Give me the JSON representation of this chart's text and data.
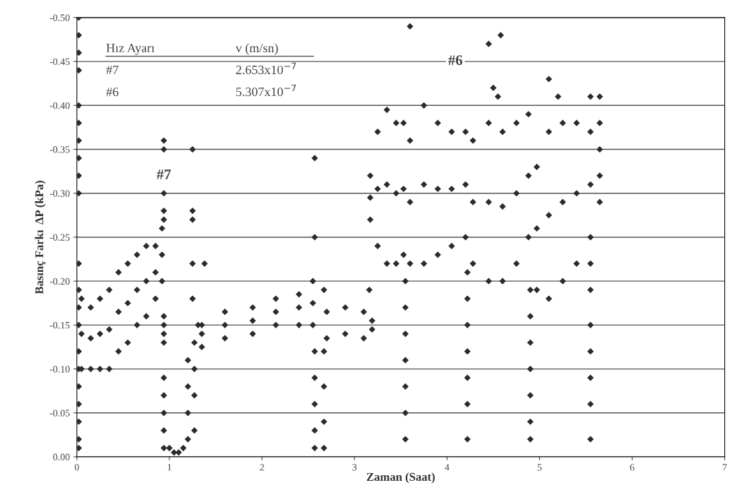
{
  "chart_data": {
    "type": "scatter",
    "xlabel": "Zaman (Saat)",
    "ylabel": "Basınç Farkı  ΔP (kPa)",
    "x": [
      0.02,
      0.02,
      0.02,
      0.02,
      0.02,
      0.02,
      0.02,
      0.02,
      0.02,
      0.02,
      0.02,
      0.02,
      0.02,
      0.02,
      0.02,
      0.02,
      0.02,
      0.02,
      0.02,
      0.02,
      0.02,
      0.05,
      0.05,
      0.05,
      0.15,
      0.15,
      0.15,
      0.25,
      0.25,
      0.25,
      0.35,
      0.35,
      0.35,
      0.45,
      0.45,
      0.45,
      0.55,
      0.55,
      0.55,
      0.65,
      0.65,
      0.65,
      0.75,
      0.75,
      0.75,
      0.85,
      0.85,
      0.85,
      0.92,
      0.92,
      0.92,
      0.94,
      0.94,
      0.94,
      0.94,
      0.94,
      0.94,
      0.94,
      0.94,
      0.94,
      0.94,
      0.94,
      0.94,
      0.94,
      0.94,
      1.0,
      1.05,
      1.1,
      1.15,
      1.2,
      1.2,
      1.2,
      1.2,
      1.27,
      1.27,
      1.27,
      1.27,
      1.31,
      1.25,
      1.25,
      1.25,
      1.25,
      1.25,
      1.38,
      1.35,
      1.35,
      1.35,
      1.6,
      1.6,
      1.6,
      1.9,
      1.9,
      1.9,
      2.15,
      2.15,
      2.15,
      2.4,
      2.4,
      2.4,
      2.55,
      2.55,
      2.55,
      2.57,
      2.57,
      2.57,
      2.57,
      2.57,
      2.57,
      2.57,
      2.67,
      2.67,
      2.67,
      2.67,
      2.67,
      2.7,
      2.7,
      2.9,
      2.9,
      3.1,
      3.1,
      3.19,
      3.19,
      3.16,
      3.17,
      3.17,
      3.17,
      3.25,
      3.25,
      3.25,
      3.35,
      3.35,
      3.35,
      3.45,
      3.45,
      3.45,
      3.53,
      3.53,
      3.53,
      3.55,
      3.55,
      3.55,
      3.55,
      3.55,
      3.55,
      3.55,
      3.6,
      3.6,
      3.6,
      3.75,
      3.75,
      3.75,
      3.9,
      3.9,
      3.9,
      4.05,
      4.05,
      4.05,
      4.2,
      4.2,
      4.2,
      4.22,
      4.22,
      4.22,
      4.22,
      4.22,
      4.22,
      4.22,
      4.28,
      4.28,
      4.28,
      4.45,
      4.45,
      4.45,
      4.6,
      4.6,
      4.6,
      4.75,
      4.75,
      4.75,
      4.88,
      4.88,
      4.88,
      4.45,
      4.58,
      4.5,
      4.55,
      3.6,
      4.9,
      4.9,
      4.9,
      4.9,
      4.9,
      4.9,
      4.9,
      4.97,
      4.97,
      4.97,
      5.1,
      5.1,
      5.1,
      5.25,
      5.25,
      5.25,
      5.4,
      5.4,
      5.4,
      5.55,
      5.55,
      5.55,
      5.1,
      5.2,
      5.55,
      5.55,
      5.55,
      5.55,
      5.55,
      5.55,
      5.55,
      5.55,
      5.65,
      5.65,
      5.65,
      5.65,
      5.65
    ],
    "values": [
      -0.5,
      -0.48,
      -0.46,
      -0.44,
      -0.4,
      -0.38,
      -0.36,
      -0.34,
      -0.32,
      -0.3,
      -0.22,
      -0.19,
      -0.17,
      -0.15,
      -0.12,
      -0.1,
      -0.08,
      -0.06,
      -0.04,
      -0.02,
      -0.01,
      -0.18,
      -0.14,
      -0.1,
      -0.17,
      -0.135,
      -0.1,
      -0.18,
      -0.14,
      -0.1,
      -0.19,
      -0.145,
      -0.1,
      -0.21,
      -0.165,
      -0.12,
      -0.22,
      -0.175,
      -0.13,
      -0.23,
      -0.19,
      -0.15,
      -0.24,
      -0.2,
      -0.16,
      -0.24,
      -0.21,
      -0.18,
      -0.26,
      -0.23,
      -0.2,
      -0.36,
      -0.35,
      -0.3,
      -0.28,
      -0.27,
      -0.16,
      -0.15,
      -0.14,
      -0.13,
      -0.09,
      -0.07,
      -0.05,
      -0.03,
      -0.01,
      -0.01,
      -0.005,
      -0.005,
      -0.01,
      -0.02,
      -0.05,
      -0.08,
      -0.11,
      -0.03,
      -0.07,
      -0.1,
      -0.13,
      -0.15,
      -0.35,
      -0.28,
      -0.27,
      -0.22,
      -0.18,
      -0.22,
      -0.15,
      -0.14,
      -0.125,
      -0.165,
      -0.15,
      -0.135,
      -0.17,
      -0.155,
      -0.14,
      -0.18,
      -0.165,
      -0.15,
      -0.185,
      -0.17,
      -0.15,
      -0.2,
      -0.175,
      -0.15,
      -0.34,
      -0.25,
      -0.12,
      -0.09,
      -0.06,
      -0.03,
      -0.01,
      -0.19,
      -0.12,
      -0.08,
      -0.04,
      -0.01,
      -0.165,
      -0.135,
      -0.17,
      -0.14,
      -0.165,
      -0.135,
      -0.155,
      -0.145,
      -0.19,
      -0.32,
      -0.295,
      -0.27,
      -0.37,
      -0.305,
      -0.24,
      -0.395,
      -0.31,
      -0.22,
      -0.38,
      -0.3,
      -0.22,
      -0.38,
      -0.305,
      -0.23,
      -0.2,
      -0.17,
      -0.14,
      -0.11,
      -0.08,
      -0.05,
      -0.02,
      -0.36,
      -0.29,
      -0.22,
      -0.4,
      -0.31,
      -0.22,
      -0.38,
      -0.305,
      -0.23,
      -0.37,
      -0.305,
      -0.24,
      -0.37,
      -0.31,
      -0.25,
      -0.21,
      -0.18,
      -0.15,
      -0.12,
      -0.09,
      -0.06,
      -0.02,
      -0.36,
      -0.29,
      -0.22,
      -0.38,
      -0.29,
      -0.2,
      -0.37,
      -0.285,
      -0.2,
      -0.38,
      -0.3,
      -0.22,
      -0.39,
      -0.32,
      -0.25,
      -0.47,
      -0.48,
      -0.42,
      -0.41,
      -0.49,
      -0.19,
      -0.16,
      -0.13,
      -0.1,
      -0.07,
      -0.04,
      -0.02,
      -0.33,
      -0.26,
      -0.19,
      -0.37,
      -0.275,
      -0.18,
      -0.38,
      -0.29,
      -0.2,
      -0.38,
      -0.3,
      -0.22,
      -0.37,
      -0.31,
      -0.25,
      -0.43,
      -0.41,
      -0.41,
      -0.22,
      -0.19,
      -0.15,
      -0.12,
      -0.09,
      -0.06,
      -0.02,
      -0.41,
      -0.38,
      -0.35,
      -0.32,
      -0.29
    ],
    "color": "#2b2b2b",
    "marker": "diamond",
    "xlim": [
      0,
      7
    ],
    "xticks": [
      0,
      1,
      2,
      3,
      4,
      5,
      6,
      7
    ],
    "ylim": [
      0.0,
      -0.5
    ],
    "yticks": [
      {
        "value": 0,
        "label": "0.00"
      },
      {
        "value": -0.05,
        "label": "-0.05"
      },
      {
        "value": -0.1,
        "label": "-0.10"
      },
      {
        "value": -0.15,
        "label": "-0.15"
      },
      {
        "value": -0.2,
        "label": "-0.20"
      },
      {
        "value": -0.25,
        "label": "-0.25"
      },
      {
        "value": -0.3,
        "label": "-0.30"
      },
      {
        "value": -0.35,
        "label": "-0.35"
      },
      {
        "value": -0.4,
        "label": "-0.40"
      },
      {
        "value": -0.45,
        "label": "-0.45"
      },
      {
        "value": -0.5,
        "label": "-0.50"
      }
    ],
    "grid": "y",
    "annotations": [
      {
        "text": "#7",
        "x": 0.94,
        "y": -0.32
      },
      {
        "text": "#6",
        "x": 4.09,
        "y": -0.45
      },
      "Hız Ayarı",
      "v (m/sn)",
      "#7",
      "2.653x10$^{−7}$",
      "#6",
      "5.307x10$^{−7}$"
    ]
  }
}
